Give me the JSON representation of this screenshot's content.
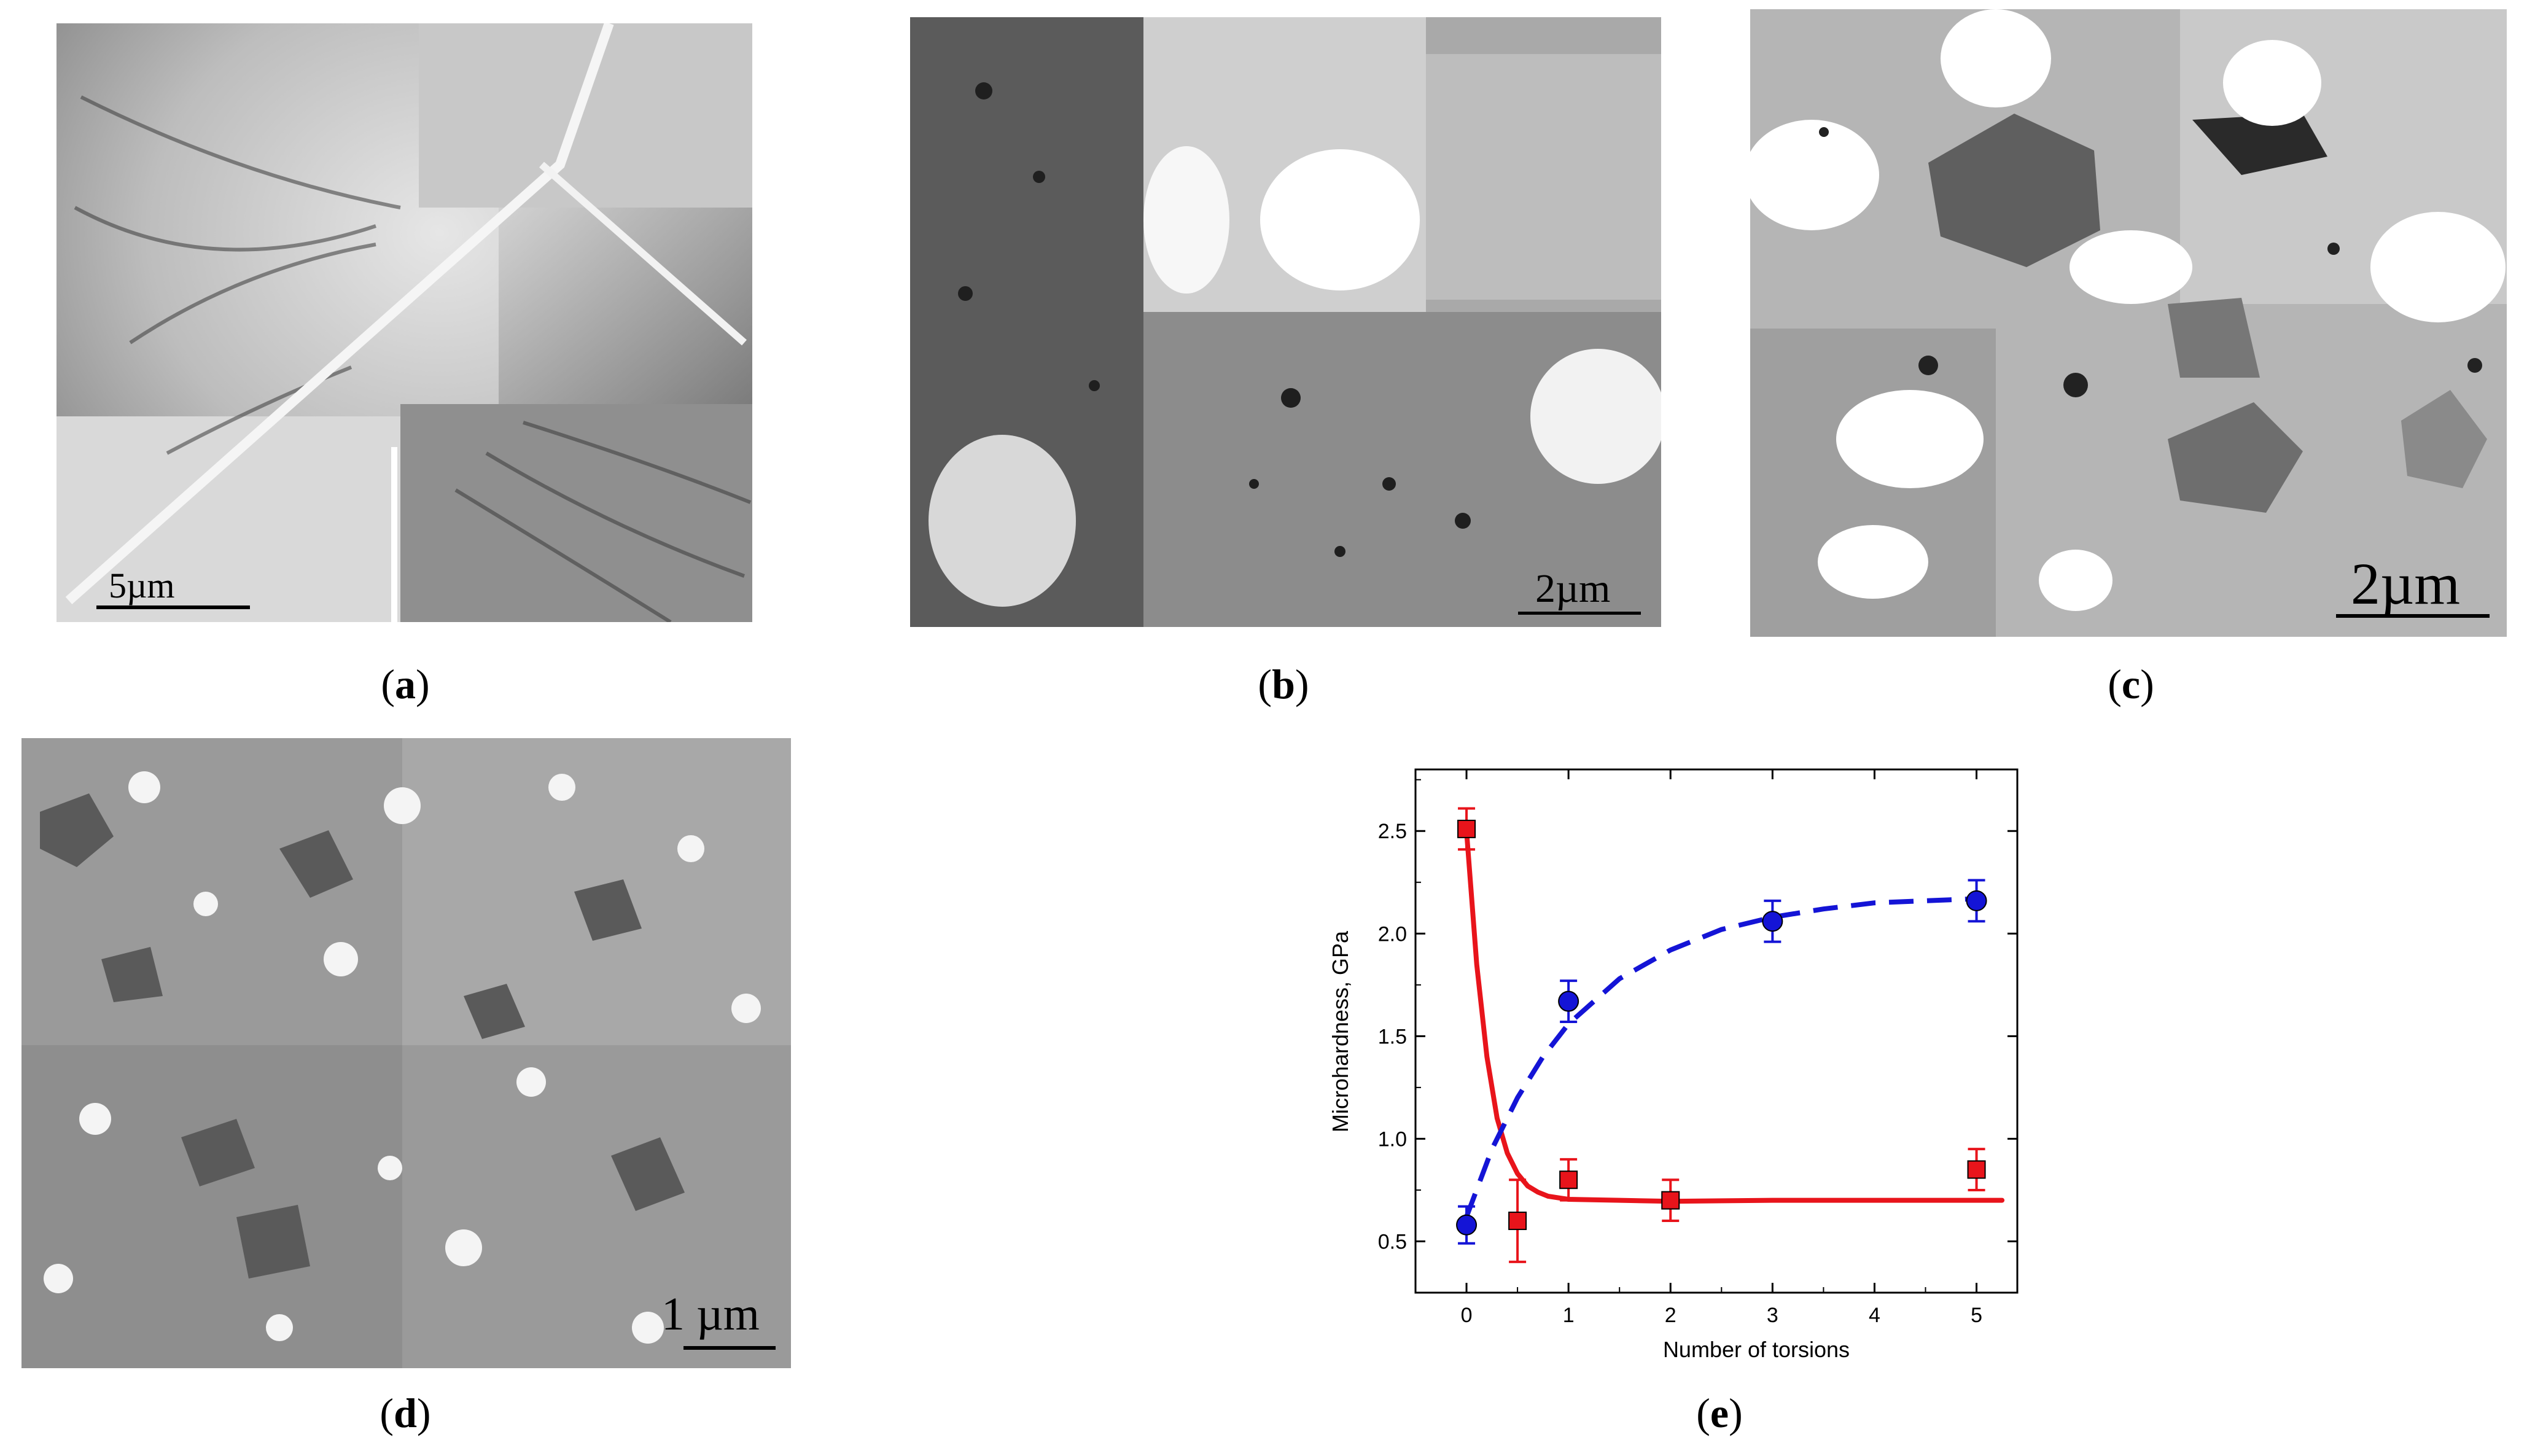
{
  "panels": {
    "a": {
      "caption_letter": "a",
      "scale_label": "5µm"
    },
    "b": {
      "caption_letter": "b",
      "scale_label": "2µm"
    },
    "c": {
      "caption_letter": "c",
      "scale_label": "2µm"
    },
    "d": {
      "caption_letter": "d",
      "scale_label": "1 µm"
    },
    "e": {
      "caption_letter": "e"
    }
  },
  "chart_data": {
    "type": "scatter",
    "xlabel": "Number of torsions",
    "ylabel": "Microhardness, GPa",
    "xlim": [
      -0.5,
      5.4
    ],
    "ylim": [
      0.25,
      2.8
    ],
    "xticks": [
      0,
      1,
      2,
      3,
      4,
      5
    ],
    "yticks": [
      0.5,
      1.0,
      1.5,
      2.0,
      2.5
    ],
    "ytick_labels": [
      "0.5",
      "1.0",
      "1.5",
      "2.0",
      "2.5"
    ],
    "series": [
      {
        "marker": "square",
        "color": "#e8141b",
        "points": [
          {
            "x": 0,
            "y": 2.51,
            "err": 0.1
          },
          {
            "x": 0.5,
            "y": 0.6,
            "err": 0.2
          },
          {
            "x": 1,
            "y": 0.8,
            "err": 0.1
          },
          {
            "x": 2,
            "y": 0.7,
            "err": 0.1
          },
          {
            "x": 5,
            "y": 0.85,
            "err": 0.1
          }
        ],
        "fit": "solid",
        "fit_points": [
          [
            0,
            2.5
          ],
          [
            0.1,
            1.85
          ],
          [
            0.2,
            1.4
          ],
          [
            0.3,
            1.1
          ],
          [
            0.4,
            0.93
          ],
          [
            0.5,
            0.83
          ],
          [
            0.6,
            0.77
          ],
          [
            0.7,
            0.74
          ],
          [
            0.8,
            0.72
          ],
          [
            1,
            0.705
          ],
          [
            1.5,
            0.7
          ],
          [
            2,
            0.695
          ],
          [
            3,
            0.7
          ],
          [
            4,
            0.7
          ],
          [
            5.25,
            0.7
          ]
        ]
      },
      {
        "marker": "circle",
        "color": "#1414d6",
        "points": [
          {
            "x": 0,
            "y": 0.58,
            "err": 0.09
          },
          {
            "x": 1,
            "y": 1.67,
            "err": 0.1
          },
          {
            "x": 3,
            "y": 2.06,
            "err": 0.1
          },
          {
            "x": 5,
            "y": 2.16,
            "err": 0.1
          }
        ],
        "fit": "dashed",
        "fit_points": [
          [
            0,
            0.62
          ],
          [
            0.25,
            0.95
          ],
          [
            0.5,
            1.2
          ],
          [
            0.75,
            1.4
          ],
          [
            1,
            1.56
          ],
          [
            1.5,
            1.78
          ],
          [
            2,
            1.92
          ],
          [
            2.5,
            2.02
          ],
          [
            3,
            2.08
          ],
          [
            3.5,
            2.12
          ],
          [
            4,
            2.15
          ],
          [
            4.5,
            2.16
          ],
          [
            5,
            2.17
          ]
        ]
      }
    ]
  }
}
